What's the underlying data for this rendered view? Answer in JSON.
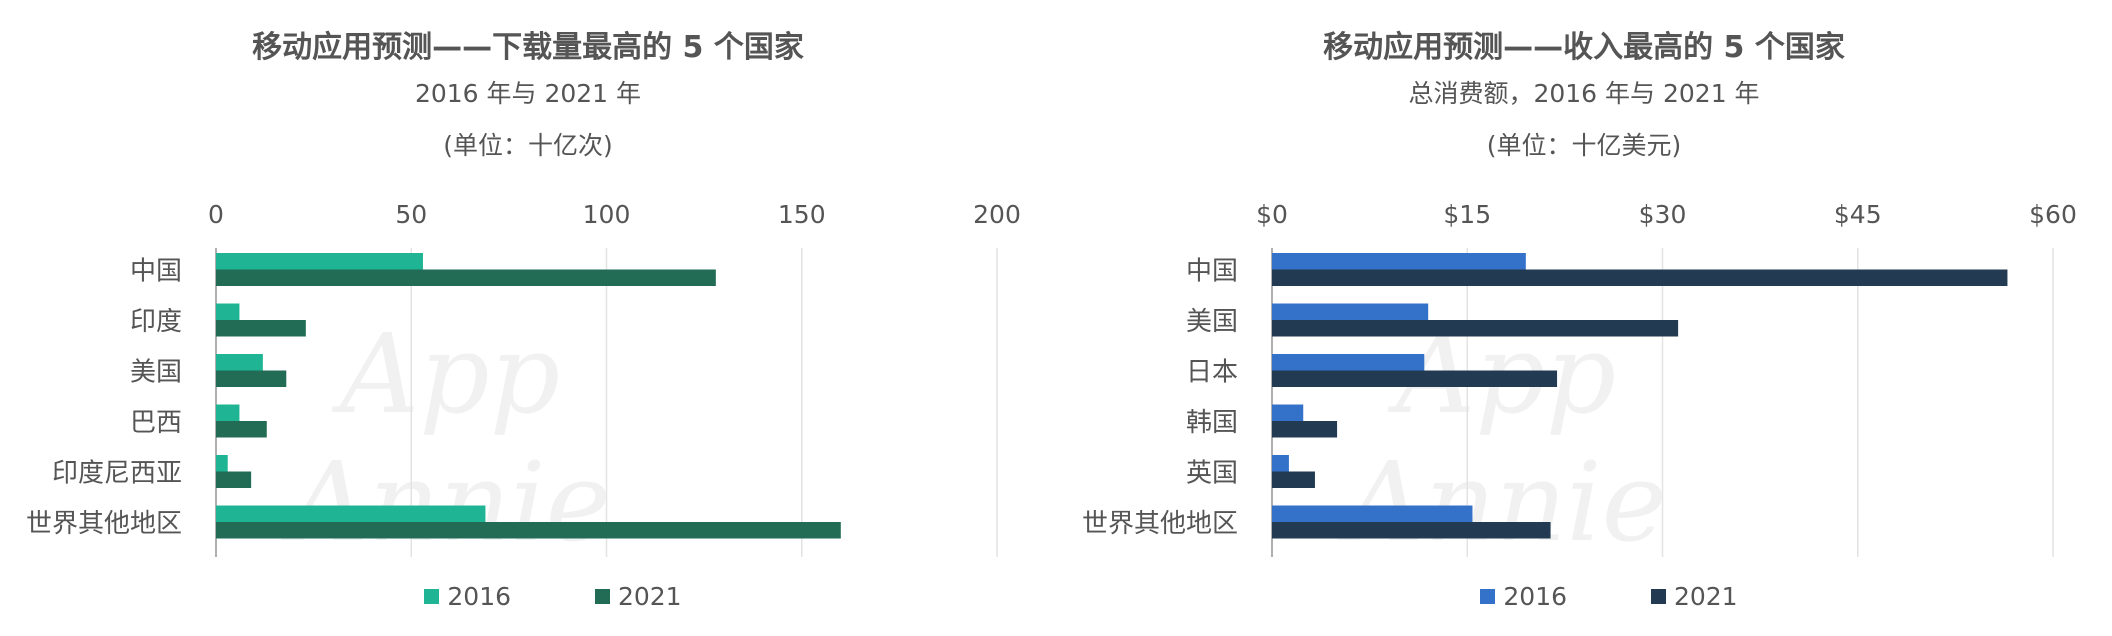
{
  "colors": {
    "left_2016": "#1fb494",
    "left_2021": "#226b55",
    "right_2016": "#3372c8",
    "right_2021": "#223a52",
    "grid": "#e3e3e3",
    "axis": "#b0b0b0"
  },
  "watermark": "App Annie",
  "chart_data": [
    {
      "type": "bar",
      "orientation": "horizontal",
      "title": "移动应用预测——下载量最高的 5 个国家",
      "subtitle": "2016 年与 2021 年",
      "unit_label": "(单位：十亿次)",
      "categories": [
        "中国",
        "印度",
        "美国",
        "巴西",
        "印度尼西亚",
        "世界其他地区"
      ],
      "series": [
        {
          "name": "2016",
          "values": [
            53,
            6,
            12,
            6,
            3,
            69
          ]
        },
        {
          "name": "2021",
          "values": [
            128,
            23,
            18,
            13,
            9,
            160
          ]
        }
      ],
      "xlim": [
        0,
        200
      ],
      "ticks": [
        0,
        50,
        100,
        150,
        200
      ],
      "tick_labels": [
        "0",
        "50",
        "100",
        "150",
        "200"
      ],
      "grid": true,
      "legend_position": "bottom"
    },
    {
      "type": "bar",
      "orientation": "horizontal",
      "title": "移动应用预测——收入最高的 5 个国家",
      "subtitle": "总消费额，2016 年与 2021 年",
      "unit_label": "(单位：十亿美元)",
      "categories": [
        "中国",
        "美国",
        "日本",
        "韩国",
        "英国",
        "世界其他地区"
      ],
      "series": [
        {
          "name": "2016",
          "values": [
            19.5,
            12,
            11.7,
            2.4,
            1.3,
            15.4
          ]
        },
        {
          "name": "2021",
          "values": [
            56.5,
            31.2,
            21.9,
            5,
            3.3,
            21.4
          ]
        }
      ],
      "xlim": [
        0,
        60
      ],
      "ticks": [
        0,
        15,
        30,
        45,
        60
      ],
      "tick_labels": [
        "$0",
        "$15",
        "$30",
        "$45",
        "$60"
      ],
      "grid": true,
      "legend_position": "bottom"
    }
  ]
}
